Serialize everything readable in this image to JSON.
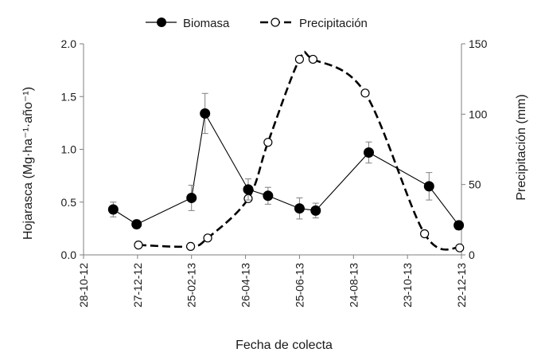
{
  "chart_data": {
    "type": "line",
    "xlabel": "Fecha de colecta",
    "ylabel_left": "Hojarasca (Mg·ha⁻¹·año⁻¹)",
    "ylabel_right": "Precipitación (mm)",
    "x_tick_labels": [
      "28-10-12",
      "27-12-12",
      "25-02-13",
      "26-04-13",
      "25-06-13",
      "24-08-13",
      "23-10-13",
      "22-12-13"
    ],
    "x_tick_dates": [
      "2012-10-28",
      "2012-12-27",
      "2013-02-25",
      "2013-04-26",
      "2013-06-25",
      "2013-08-24",
      "2013-10-23",
      "2013-12-22"
    ],
    "xlim": [
      "2012-10-28",
      "2013-12-22"
    ],
    "ylim_left": [
      0,
      2.0
    ],
    "yticks_left": [
      "0.0",
      "0.5",
      "1.0",
      "1.5",
      "2.0"
    ],
    "ylim_right": [
      0,
      150
    ],
    "yticks_right": [
      "0",
      "50",
      "100",
      "150"
    ],
    "grid": false,
    "legend_position": "top-center",
    "series": [
      {
        "name": "Biomasa",
        "axis": "left",
        "line_style": "solid",
        "marker": "filled-circle",
        "color": "#000000",
        "x": [
          "2012-11-30",
          "2012-12-26",
          "2013-02-25",
          "2013-03-12",
          "2013-04-29",
          "2013-05-21",
          "2013-06-25",
          "2013-07-13",
          "2013-09-10",
          "2013-11-16",
          "2013-12-19"
        ],
        "y": [
          0.43,
          0.29,
          0.54,
          1.34,
          0.62,
          0.56,
          0.44,
          0.42,
          0.97,
          0.65,
          0.28
        ],
        "error": [
          0.07,
          0.04,
          0.12,
          0.19,
          0.1,
          0.08,
          0.1,
          0.07,
          0.1,
          0.13,
          0.04
        ]
      },
      {
        "name": "Precipitación",
        "axis": "right",
        "line_style": "dashed",
        "marker": "open-circle",
        "color": "#000000",
        "x": [
          "2012-12-28",
          "2013-02-24",
          "2013-03-15",
          "2013-04-29",
          "2013-05-21",
          "2013-06-25",
          "2013-07-10",
          "2013-09-06",
          "2013-11-11",
          "2013-12-20"
        ],
        "y": [
          7,
          6,
          12,
          40,
          80,
          139,
          139,
          115,
          15,
          5
        ]
      }
    ]
  }
}
